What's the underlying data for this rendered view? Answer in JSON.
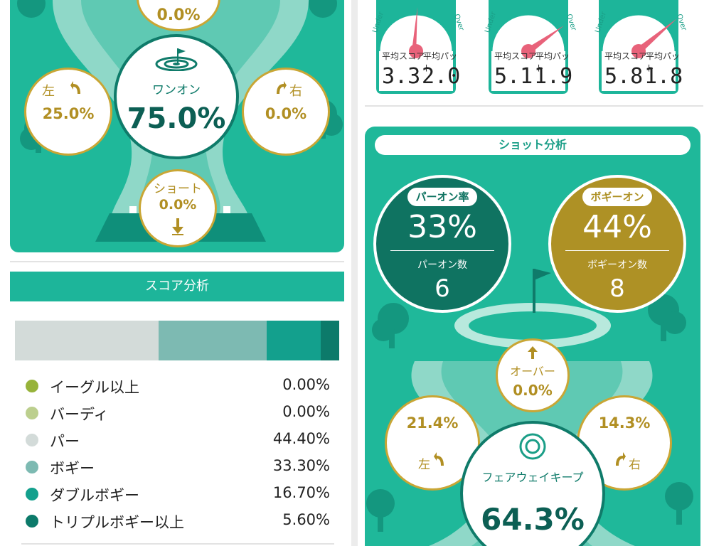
{
  "colors": {
    "teal": "#1fb89a",
    "dark_teal": "#0f7b6a",
    "gold": "#b18f23",
    "light_mint": "#8fd8c8"
  },
  "left": {
    "direction_stats": {
      "top_value": "0.0%",
      "center_label": "ワンオン",
      "center_value": "75.0%",
      "left_label": "左",
      "left_value": "25.0%",
      "right_label": "右",
      "right_value": "0.0%",
      "short_label": "ショート",
      "short_value": "0.0%"
    },
    "score_analysis": {
      "title": "スコア分析",
      "bar_segments": [
        {
          "name": "パー",
          "value": 44.4,
          "color": "#d3dbd9"
        },
        {
          "name": "ボギー",
          "value": 33.3,
          "color": "#7dbab2"
        },
        {
          "name": "ダブルボギー",
          "value": 16.7,
          "color": "#13a08d"
        },
        {
          "name": "トリプルボギー以上",
          "value": 5.6,
          "color": "#0c7a6a"
        }
      ],
      "legend": [
        {
          "label": "イーグル以上",
          "value": "0.00%",
          "color": "#97b33a"
        },
        {
          "label": "バーディ",
          "value": "0.00%",
          "color": "#bccf8e"
        },
        {
          "label": "パー",
          "value": "44.40%",
          "color": "#d3dbd9"
        },
        {
          "label": "ボギー",
          "value": "33.30%",
          "color": "#7dbab2"
        },
        {
          "label": "ダブルボギー",
          "value": "16.70%",
          "color": "#13a08d"
        },
        {
          "label": "トリプルボギー以上",
          "value": "5.60%",
          "color": "#0c7a6a"
        }
      ]
    }
  },
  "right": {
    "gauges": [
      {
        "under": "Under",
        "over": "Over",
        "avg_score_label": "平均スコア",
        "avg_putt_label": "平均パット",
        "avg_score": "3.3",
        "avg_putt": "2.0"
      },
      {
        "under": "Under",
        "over": "Over",
        "avg_score_label": "平均スコア",
        "avg_putt_label": "平均パット",
        "avg_score": "5.1",
        "avg_putt": "1.9"
      },
      {
        "under": "Under",
        "over": "Over",
        "avg_score_label": "平均スコア",
        "avg_putt_label": "平均パット",
        "avg_score": "5.8",
        "avg_putt": "1.8"
      }
    ],
    "shot_analysis": {
      "title": "ショット分析",
      "par_on": {
        "label": "パーオン率",
        "rate": "33%",
        "count_label": "パーオン数",
        "count": "6"
      },
      "bogey_on": {
        "label": "ボギーオン",
        "rate": "44%",
        "count_label": "ボギーオン数",
        "count": "8"
      },
      "over": {
        "label": "オーバー",
        "value": "0.0%"
      },
      "left": {
        "label": "左",
        "value": "21.4%"
      },
      "right": {
        "label": "右",
        "value": "14.3%"
      },
      "fairway": {
        "label": "フェアウェイキープ",
        "value": "64.3%"
      }
    }
  }
}
